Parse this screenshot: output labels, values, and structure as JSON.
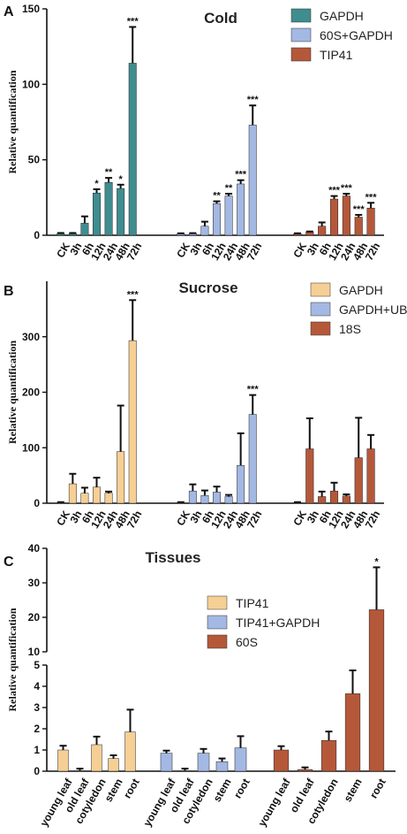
{
  "chart_data": [
    {
      "panel_label": "A",
      "type": "bar",
      "title": "Cold",
      "ylabel": "Relative quantification",
      "ylim": [
        0,
        150
      ],
      "yticks": [
        0,
        50,
        100,
        150
      ],
      "categories": [
        "CK",
        "3h",
        "6h",
        "12h",
        "24h",
        "48h",
        "72h"
      ],
      "series": [
        {
          "name": "GAPDH",
          "color": "#3f8d8f",
          "values": [
            1,
            1,
            8,
            28,
            35,
            31,
            114
          ],
          "errors": [
            0.5,
            0.5,
            4.5,
            2.5,
            3,
            2.5,
            24
          ],
          "sig": [
            "",
            "",
            "",
            "*",
            "**",
            "*",
            "***"
          ]
        },
        {
          "name": "60S+GAPDH",
          "color": "#a3b8e2",
          "values": [
            1,
            1,
            6,
            21,
            26,
            34,
            73
          ],
          "errors": [
            0.3,
            0.4,
            3,
            1.5,
            1.5,
            2.5,
            13
          ],
          "sig": [
            "",
            "",
            "",
            "**",
            "**",
            "***",
            "***"
          ]
        },
        {
          "name": "TIP41",
          "color": "#b5583a",
          "values": [
            1,
            2,
            6,
            24,
            26,
            12,
            18
          ],
          "errors": [
            0.3,
            0.5,
            2.5,
            2,
            1.5,
            1.5,
            3.5
          ],
          "sig": [
            "",
            "",
            "",
            "***",
            "***",
            "***",
            "***"
          ]
        }
      ]
    },
    {
      "panel_label": "B",
      "type": "bar",
      "title": "Sucrose",
      "ylabel": "Relative quantification",
      "ylim": [
        0,
        400
      ],
      "yticks": [
        0,
        100,
        200,
        300
      ],
      "categories": [
        "CK",
        "3h",
        "6h",
        "12h",
        "24h",
        "48h",
        "72h"
      ],
      "series": [
        {
          "name": "GAPDH",
          "color": "#f6cf95",
          "values": [
            1,
            35,
            18,
            29,
            18,
            93,
            293
          ],
          "errors": [
            1,
            18,
            10,
            17,
            3,
            83,
            73
          ],
          "sig": [
            "",
            "",
            "",
            "",
            "",
            "",
            "***"
          ]
        },
        {
          "name": "GAPDH+UBQ",
          "color": "#a3b8e2",
          "values": [
            1,
            22,
            14,
            20,
            12,
            68,
            160
          ],
          "errors": [
            1,
            12,
            9,
            10,
            3,
            58,
            35
          ],
          "sig": [
            "",
            "",
            "",
            "",
            "",
            "",
            "***"
          ]
        },
        {
          "name": "18S",
          "color": "#b5583a",
          "values": [
            1,
            98,
            12,
            22,
            13,
            82,
            98
          ],
          "errors": [
            1,
            55,
            9,
            15,
            3,
            72,
            25
          ],
          "sig": [
            "",
            "",
            "",
            "",
            "",
            "",
            ""
          ]
        }
      ]
    },
    {
      "panel_label": "C",
      "type": "bar",
      "title": "Tissues",
      "ylabel": "Relative quantification",
      "broken_axis": {
        "lower_ylim": [
          0,
          5
        ],
        "upper_ylim": [
          10,
          40
        ]
      },
      "yticks_lower": [
        0,
        1,
        2,
        3,
        4,
        5
      ],
      "yticks_upper": [
        10,
        20,
        30,
        40
      ],
      "categories": [
        "young leaf",
        "old leaf",
        "cotyledon",
        "stem",
        "root"
      ],
      "series": [
        {
          "name": "TIP41",
          "color": "#f6cf95",
          "values": [
            1.0,
            0.02,
            1.25,
            0.6,
            1.85
          ],
          "errors": [
            0.2,
            0.1,
            0.38,
            0.15,
            1.05
          ],
          "sig": [
            "",
            "",
            "",
            "",
            ""
          ]
        },
        {
          "name": "TIP41+GAPDH",
          "color": "#a3b8e2",
          "values": [
            0.85,
            0.02,
            0.85,
            0.45,
            1.1
          ],
          "errors": [
            0.12,
            0.1,
            0.2,
            0.15,
            0.55
          ],
          "sig": [
            "",
            "",
            "",
            "",
            ""
          ]
        },
        {
          "name": "60S",
          "color": "#b5583a",
          "values": [
            1.0,
            0.08,
            1.45,
            3.65,
            22.2
          ],
          "errors": [
            0.18,
            0.1,
            0.42,
            1.1,
            12.3
          ],
          "sig": [
            "",
            "",
            "",
            "",
            "*"
          ]
        }
      ]
    }
  ]
}
